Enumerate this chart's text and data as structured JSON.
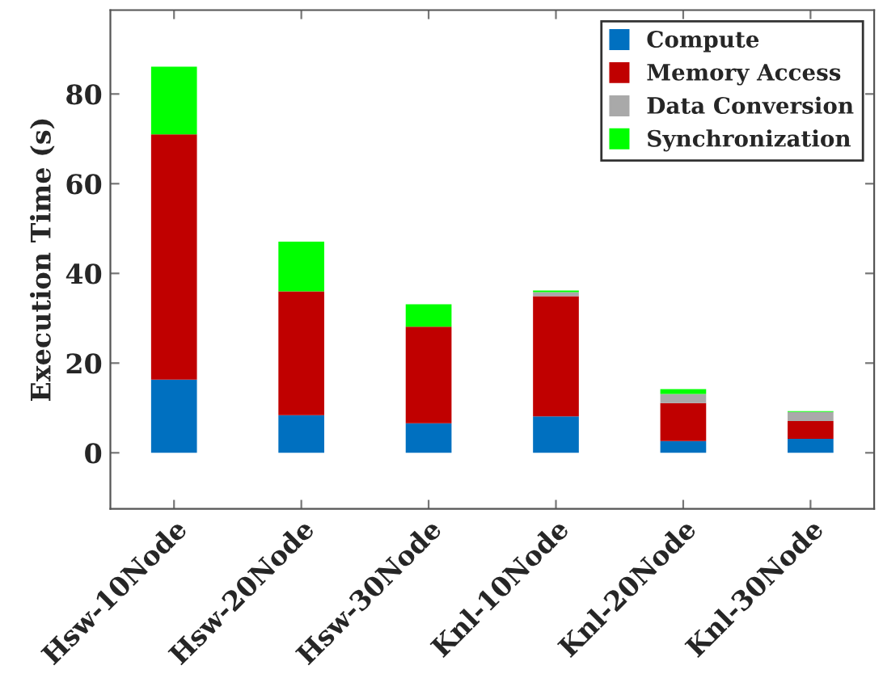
{
  "chart_data": {
    "type": "bar",
    "stacked": true,
    "ylabel": "Execution Time (s)",
    "categories": [
      "Hsw-10Node",
      "Hsw-20Node",
      "Hsw-30Node",
      "Knl-10Node",
      "Knl-20Node",
      "Knl-30Node"
    ],
    "series": [
      {
        "name": "Compute",
        "color": "#0070c0",
        "values": [
          16.3,
          8.4,
          6.6,
          8.1,
          2.6,
          3.1
        ]
      },
      {
        "name": "Memory Access",
        "color": "#c00000",
        "values": [
          54.7,
          27.6,
          21.5,
          26.8,
          8.5,
          4.0
        ]
      },
      {
        "name": "Data Conversion",
        "color": "#a9a9a9",
        "values": [
          0,
          0,
          0,
          0.9,
          2.0,
          2.0
        ]
      },
      {
        "name": "Synchronization",
        "color": "#00ff00",
        "values": [
          15.1,
          11.1,
          5.0,
          0.4,
          1.1,
          0.2
        ]
      }
    ],
    "ylim": [
      -12.5,
      98.7
    ],
    "yticks": [
      0,
      20,
      40,
      60,
      80
    ],
    "legend": "top right",
    "grid": false
  }
}
